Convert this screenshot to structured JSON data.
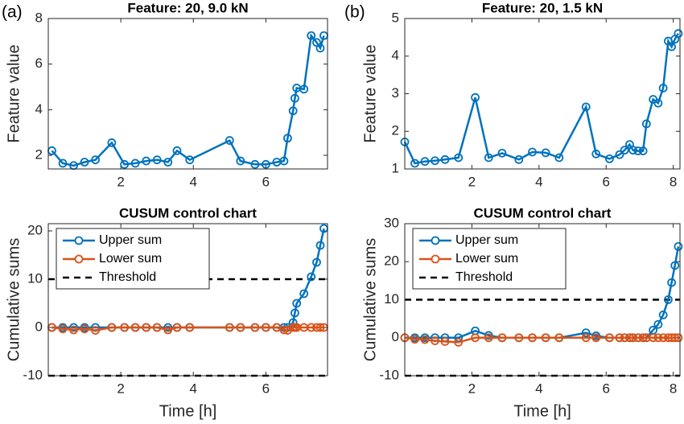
{
  "chart_data": [
    {
      "type": "line",
      "panel_label": "(a)",
      "title": "Feature: 20, 9.0 kN",
      "ylabel": "Feature value",
      "x": [
        0.1,
        0.4,
        0.7,
        1.0,
        1.3,
        1.75,
        2.1,
        2.4,
        2.7,
        3.0,
        3.3,
        3.55,
        3.9,
        5.0,
        5.3,
        5.7,
        6.0,
        6.3,
        6.5,
        6.6,
        6.75,
        6.8,
        6.85,
        7.05,
        7.25,
        7.4,
        7.5,
        7.6
      ],
      "series": [
        {
          "color": "#0072bd",
          "values": [
            2.2,
            1.65,
            1.55,
            1.7,
            1.8,
            2.55,
            1.6,
            1.65,
            1.75,
            1.8,
            1.7,
            2.2,
            1.8,
            2.65,
            1.75,
            1.6,
            1.6,
            1.7,
            1.75,
            2.75,
            3.95,
            4.5,
            4.95,
            4.9,
            7.25,
            6.95,
            6.7,
            7.25
          ]
        }
      ],
      "xlim": [
        0,
        7.7
      ],
      "ylim": [
        1.4,
        8
      ],
      "xticks": [
        2,
        4,
        6
      ],
      "yticks": [
        2,
        4,
        6,
        8
      ]
    },
    {
      "type": "line",
      "panel_label": "(b)",
      "title": "Feature: 20, 1.5 kN",
      "ylabel": "Feature value",
      "x": [
        0.0,
        0.3,
        0.6,
        0.9,
        1.2,
        1.6,
        2.1,
        2.5,
        2.9,
        3.4,
        3.8,
        4.2,
        4.6,
        5.4,
        5.7,
        6.1,
        6.4,
        6.55,
        6.7,
        6.8,
        6.95,
        7.1,
        7.2,
        7.4,
        7.55,
        7.7,
        7.85,
        7.95,
        8.05,
        8.15
      ],
      "series": [
        {
          "color": "#0072bd",
          "values": [
            1.72,
            1.15,
            1.2,
            1.22,
            1.25,
            1.3,
            2.9,
            1.3,
            1.42,
            1.25,
            1.45,
            1.43,
            1.3,
            2.65,
            1.4,
            1.27,
            1.38,
            1.5,
            1.65,
            1.5,
            1.48,
            1.48,
            2.2,
            2.85,
            2.75,
            3.15,
            4.4,
            4.25,
            4.45,
            4.6
          ]
        }
      ],
      "xlim": [
        0,
        8.2
      ],
      "ylim": [
        1,
        5
      ],
      "xticks": [
        2,
        4,
        6,
        8
      ],
      "yticks": [
        1,
        2,
        3,
        4,
        5
      ]
    },
    {
      "type": "line",
      "title": "CUSUM control chart",
      "ylabel": "Cumulative sums",
      "xlabel": "Time [h]",
      "legend": "upper left",
      "x": [
        0.1,
        0.4,
        0.7,
        1.0,
        1.3,
        1.75,
        2.1,
        2.4,
        2.7,
        3.0,
        3.3,
        3.55,
        3.9,
        5.0,
        5.3,
        5.7,
        6.0,
        6.3,
        6.5,
        6.6,
        6.75,
        6.8,
        6.85,
        7.05,
        7.25,
        7.4,
        7.5,
        7.6
      ],
      "series": [
        {
          "name": "Upper sum",
          "color": "#0072bd",
          "values": [
            0,
            0,
            0,
            0,
            0,
            0,
            0,
            0,
            0,
            0,
            0,
            0,
            0,
            0,
            0,
            0,
            0,
            0,
            0,
            0,
            1,
            3,
            5,
            7,
            10.5,
            13.5,
            17,
            20.5
          ]
        },
        {
          "name": "Lower sum",
          "color": "#d95319",
          "values": [
            0,
            -0.3,
            -0.5,
            -0.3,
            -0.6,
            0,
            0,
            0,
            0,
            0,
            -0.5,
            0,
            0,
            0,
            0,
            0,
            0,
            0,
            -0.5,
            -0.6,
            0,
            0,
            0,
            0,
            0,
            0,
            0,
            0
          ]
        }
      ],
      "threshold": {
        "name": "Threshold",
        "color": "#000000",
        "values": [
          10,
          -10
        ]
      },
      "xlim": [
        0,
        7.7
      ],
      "ylim": [
        -10,
        21.5
      ],
      "xticks": [
        2,
        4,
        6
      ],
      "yticks": [
        -10,
        0,
        10,
        20
      ]
    },
    {
      "type": "line",
      "title": "CUSUM control chart",
      "ylabel": "Cumulative sums",
      "xlabel": "Time [h]",
      "legend": "upper left",
      "x": [
        0.0,
        0.3,
        0.6,
        0.9,
        1.2,
        1.6,
        2.1,
        2.5,
        2.9,
        3.4,
        3.8,
        4.2,
        4.6,
        5.4,
        5.7,
        6.1,
        6.4,
        6.55,
        6.7,
        6.8,
        6.95,
        7.1,
        7.2,
        7.4,
        7.55,
        7.7,
        7.85,
        7.95,
        8.05,
        8.15
      ],
      "series": [
        {
          "name": "Upper sum",
          "color": "#0072bd",
          "values": [
            0,
            0,
            0,
            0,
            0,
            0,
            1.8,
            0.6,
            0,
            0,
            0,
            0,
            0,
            1.3,
            0.5,
            0,
            0,
            0,
            0,
            0,
            0,
            0,
            0,
            2,
            3.5,
            6,
            10,
            14.5,
            19,
            24
          ]
        },
        {
          "name": "Lower sum",
          "color": "#d95319",
          "values": [
            0,
            -0.4,
            -0.5,
            -0.8,
            -1,
            -1.2,
            0,
            0,
            0,
            0,
            0,
            0,
            0,
            0,
            0,
            0,
            0,
            0,
            0,
            0,
            0,
            0,
            0,
            0,
            0,
            0,
            0,
            0,
            0,
            0
          ]
        }
      ],
      "threshold": {
        "name": "Threshold",
        "color": "#000000",
        "values": [
          10,
          -10
        ]
      },
      "xlim": [
        0,
        8.2
      ],
      "ylim": [
        -10,
        30
      ],
      "xticks": [
        2,
        4,
        6,
        8
      ],
      "yticks": [
        -10,
        0,
        10,
        20,
        30
      ]
    }
  ]
}
